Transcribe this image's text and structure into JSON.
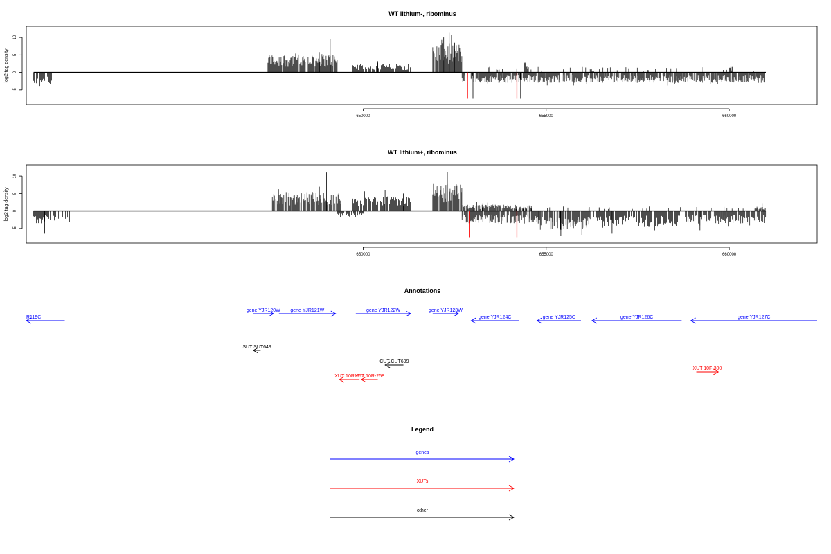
{
  "chart_data": [
    {
      "type": "bar",
      "title": "WT lithium-, ribominus",
      "ylabel": "log2 tag density",
      "xlabel": "",
      "xlim": [
        640800,
        662400
      ],
      "ylim": [
        -8,
        12
      ],
      "yticks": [
        -5,
        0,
        5,
        10
      ],
      "xticks": [
        650000,
        655000,
        660000
      ],
      "xtick_labels": [
        "650000",
        "655000",
        "660000"
      ],
      "bar_color": "#000000",
      "highlight_color": "#ff0000",
      "strands": {
        "plus": [
          {
            "start": 647400,
            "end": 649300,
            "level": 4.5,
            "peaks": [
              [
                648300,
                7
              ],
              [
                648800,
                5.8
              ],
              [
                649100,
                9.6
              ]
            ]
          },
          {
            "start": 649700,
            "end": 651300,
            "level": 2.0,
            "peaks": [
              [
                650400,
                3.2
              ]
            ]
          },
          {
            "start": 651900,
            "end": 652700,
            "level": 7.0,
            "peaks": [
              [
                652200,
                10
              ],
              [
                652350,
                11.5
              ],
              [
                652500,
                8.5
              ]
            ]
          },
          {
            "start": 654400,
            "end": 654500,
            "level": 2.5,
            "peaks": []
          },
          {
            "start": 656200,
            "end": 656300,
            "level": 0.8,
            "peaks": []
          },
          {
            "start": 660000,
            "end": 660100,
            "level": 1.5,
            "peaks": []
          }
        ],
        "minus": [
          {
            "start": 641000,
            "end": 641500,
            "level": -3.0,
            "peaks": []
          },
          {
            "start": 652700,
            "end": 661000,
            "level": -2.5,
            "peaks": [
              [
                653000,
                -7.5
              ],
              [
                654300,
                -7.5
              ]
            ]
          }
        ]
      },
      "highlights": [
        {
          "x": 652850,
          "y": -7.5
        },
        {
          "x": 654200,
          "y": -7.5
        }
      ]
    },
    {
      "type": "bar",
      "title": "WT lithium+, ribominus",
      "ylabel": "log2 tag density",
      "xlabel": "",
      "xlim": [
        640800,
        662400
      ],
      "ylim": [
        -8,
        12
      ],
      "yticks": [
        -5,
        0,
        5,
        10
      ],
      "xticks": [
        650000,
        655000,
        660000
      ],
      "xtick_labels": [
        "650000",
        "655000",
        "660000"
      ],
      "bar_color": "#000000",
      "highlight_color": "#ff0000",
      "strands": {
        "plus": [
          {
            "start": 647500,
            "end": 649400,
            "level": 4.5,
            "peaks": [
              [
                649000,
                11
              ],
              [
                648600,
                7.5
              ]
            ]
          },
          {
            "start": 649700,
            "end": 651300,
            "level": 3.5,
            "peaks": [
              [
                650600,
                6
              ],
              [
                651100,
                5
              ]
            ]
          },
          {
            "start": 651900,
            "end": 652700,
            "level": 6.5,
            "peaks": [
              [
                652300,
                11.2
              ],
              [
                652100,
                9
              ]
            ]
          },
          {
            "start": 652700,
            "end": 654600,
            "level": 1.5,
            "peaks": [
              [
                653100,
                2.5
              ]
            ]
          },
          {
            "start": 660700,
            "end": 661000,
            "level": 1.0,
            "peaks": [
              [
                660900,
                2.2
              ]
            ]
          }
        ],
        "minus": [
          {
            "start": 641000,
            "end": 642000,
            "level": -3.0,
            "peaks": [
              [
                641300,
                -6.5
              ]
            ]
          },
          {
            "start": 649300,
            "end": 650000,
            "level": -1.5,
            "peaks": []
          },
          {
            "start": 652700,
            "end": 654800,
            "level": -3.0,
            "peaks": []
          },
          {
            "start": 654800,
            "end": 656200,
            "level": -4.5,
            "peaks": [
              [
                655400,
                -7.2
              ]
            ]
          },
          {
            "start": 656300,
            "end": 658700,
            "level": -3.8,
            "peaks": [
              [
                656800,
                -6.5
              ]
            ]
          },
          {
            "start": 658800,
            "end": 661000,
            "level": -3.0,
            "peaks": [
              [
                659200,
                -5.5
              ]
            ]
          }
        ]
      },
      "highlights": [
        {
          "x": 652900,
          "y": -7.5
        },
        {
          "x": 654200,
          "y": -7.5
        }
      ]
    }
  ],
  "annotations": {
    "title": "Annotations",
    "xlim": [
      640800,
      662400
    ],
    "features": [
      {
        "label": "R119C",
        "type": "gene",
        "strand": "-",
        "start": 640000,
        "end": 641850,
        "row": 1,
        "label_clip_left": true
      },
      {
        "label": "gene YJR120W",
        "type": "gene",
        "strand": "+",
        "start": 647000,
        "end": 647550,
        "row": 0
      },
      {
        "label": "gene YJR121W",
        "type": "gene",
        "strand": "+",
        "start": 647700,
        "end": 649250,
        "row": 0
      },
      {
        "label": "gene YJR122W",
        "type": "gene",
        "strand": "+",
        "start": 649800,
        "end": 651300,
        "row": 0
      },
      {
        "label": "gene YJR123W",
        "type": "gene",
        "strand": "+",
        "start": 651900,
        "end": 652600,
        "row": 0
      },
      {
        "label": "gene YJR124C",
        "type": "gene",
        "strand": "-",
        "start": 652950,
        "end": 654250,
        "row": 1
      },
      {
        "label": "gene YJR125C",
        "type": "gene",
        "strand": "-",
        "start": 654750,
        "end": 655950,
        "row": 1
      },
      {
        "label": "gene YJR126C",
        "type": "gene",
        "strand": "-",
        "start": 656250,
        "end": 658700,
        "row": 1
      },
      {
        "label": "gene YJR127C",
        "type": "gene",
        "strand": "-",
        "start": 658950,
        "end": 662400,
        "row": 1
      },
      {
        "label": "SUT SUT649",
        "type": "other",
        "strand": "-",
        "start": 647000,
        "end": 647200,
        "row": 2
      },
      {
        "label": "CUT CUT699",
        "type": "other",
        "strand": "-",
        "start": 650600,
        "end": 651100,
        "row": 3
      },
      {
        "label": "XUT 10R-257",
        "type": "xut",
        "strand": "-",
        "start": 649350,
        "end": 649900,
        "row": 4
      },
      {
        "label": "XUT 10R-258",
        "type": "xut",
        "strand": "-",
        "start": 649950,
        "end": 650400,
        "row": 4
      },
      {
        "label": "XUT 10F-300",
        "type": "xut",
        "strand": "+",
        "start": 659100,
        "end": 659700,
        "row": 5
      }
    ]
  },
  "legend": {
    "title": "Legend",
    "entries": [
      {
        "label": "genes",
        "color": "#0000ff"
      },
      {
        "label": "XUTs",
        "color": "#ff0000"
      },
      {
        "label": "other",
        "color": "#000000"
      }
    ]
  },
  "colors": {
    "gene": "#0000ff",
    "xut": "#ff0000",
    "other": "#000000"
  }
}
